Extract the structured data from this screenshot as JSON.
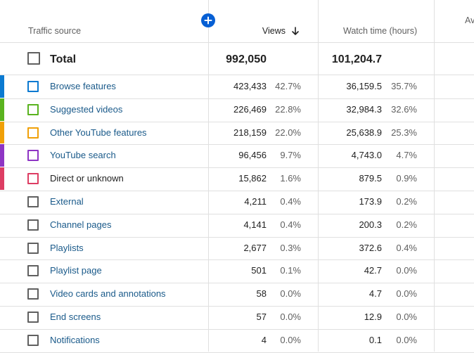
{
  "header": {
    "traffic_source": "Traffic source",
    "views": "Views",
    "watch_time": "Watch time (hours)",
    "next_column_partial": "Av"
  },
  "total": {
    "label": "Total",
    "views": "992,050",
    "watch_time": "101,204.7"
  },
  "rows": [
    {
      "label": "Browse features",
      "views": "423,433",
      "views_pct": "42.7%",
      "watch": "36,159.5",
      "watch_pct": "35.7%",
      "color": "#0b7ad1"
    },
    {
      "label": "Suggested videos",
      "views": "226,469",
      "views_pct": "22.8%",
      "watch": "32,984.3",
      "watch_pct": "32.6%",
      "color": "#5ab31f"
    },
    {
      "label": "Other YouTube features",
      "views": "218,159",
      "views_pct": "22.0%",
      "watch": "25,638.9",
      "watch_pct": "25.3%",
      "color": "#f0a008"
    },
    {
      "label": "YouTube search",
      "views": "96,456",
      "views_pct": "9.7%",
      "watch": "4,743.0",
      "watch_pct": "4.7%",
      "color": "#8e35c4"
    },
    {
      "label": "Direct or unknown",
      "views": "15,862",
      "views_pct": "1.6%",
      "watch": "879.5",
      "watch_pct": "0.9%",
      "color": "#dd3d63"
    },
    {
      "label": "External",
      "views": "4,211",
      "views_pct": "0.4%",
      "watch": "173.9",
      "watch_pct": "0.2%",
      "color": ""
    },
    {
      "label": "Channel pages",
      "views": "4,141",
      "views_pct": "0.4%",
      "watch": "200.3",
      "watch_pct": "0.2%",
      "color": ""
    },
    {
      "label": "Playlists",
      "views": "2,677",
      "views_pct": "0.3%",
      "watch": "372.6",
      "watch_pct": "0.4%",
      "color": ""
    },
    {
      "label": "Playlist page",
      "views": "501",
      "views_pct": "0.1%",
      "watch": "42.7",
      "watch_pct": "0.0%",
      "color": ""
    },
    {
      "label": "Video cards and annotations",
      "views": "58",
      "views_pct": "0.0%",
      "watch": "4.7",
      "watch_pct": "0.0%",
      "color": ""
    },
    {
      "label": "End screens",
      "views": "57",
      "views_pct": "0.0%",
      "watch": "12.9",
      "watch_pct": "0.0%",
      "color": ""
    },
    {
      "label": "Notifications",
      "views": "4",
      "views_pct": "0.0%",
      "watch": "0.1",
      "watch_pct": "0.0%",
      "color": ""
    }
  ],
  "icons": {
    "add": "add-metric-icon",
    "sort": "arrow-down-icon"
  },
  "colors": {
    "accent": "#065fd4",
    "link": "#1a5a8a"
  }
}
